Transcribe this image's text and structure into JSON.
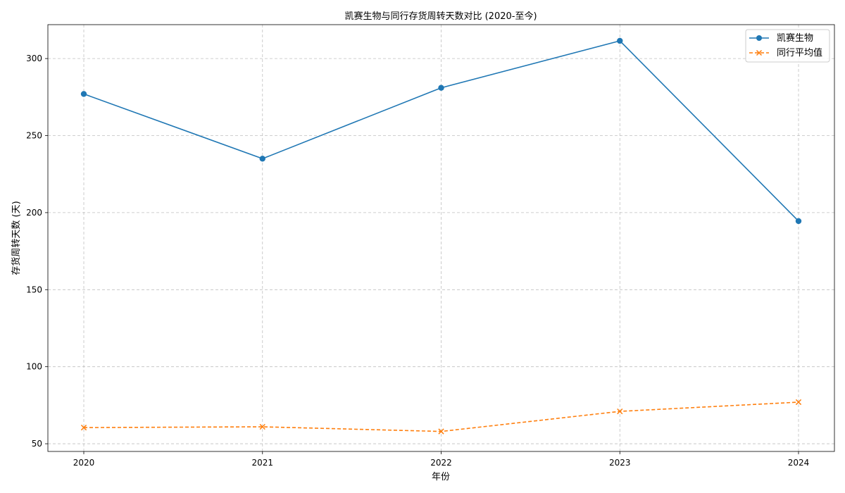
{
  "chart_data": {
    "type": "line",
    "title": "凯赛生物与同行存货周转天数对比 (2020-至今)",
    "xlabel": "年份",
    "ylabel": "存货周转天数 (天)",
    "categories": [
      "2020",
      "2021",
      "2022",
      "2023",
      "2024"
    ],
    "ylim": [
      45,
      322
    ],
    "yticks": [
      50,
      100,
      150,
      200,
      250,
      300
    ],
    "grid": true,
    "legend_position": "top-right",
    "series": [
      {
        "name": "凯赛生物",
        "values": [
          277,
          235,
          281,
          311.5,
          194.5
        ],
        "color": "#1f77b4",
        "marker": "circle",
        "linestyle": "solid"
      },
      {
        "name": "同行平均值",
        "values": [
          60.5,
          61,
          58,
          71,
          77
        ],
        "color": "#ff7f0e",
        "marker": "x",
        "linestyle": "dashed"
      }
    ]
  }
}
